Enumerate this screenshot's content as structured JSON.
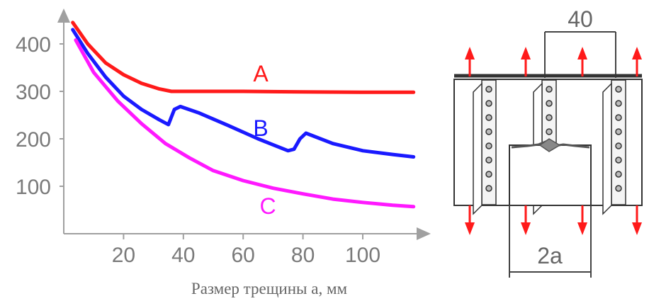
{
  "chart_data": {
    "type": "line",
    "xlabel": "Размер трещины  а, мм",
    "ylabel": "",
    "xlim": [
      0,
      120
    ],
    "ylim": [
      0,
      460
    ],
    "xticks": [
      20,
      40,
      60,
      80,
      100
    ],
    "yticks": [
      100,
      200,
      300,
      400
    ],
    "grid": false,
    "series": [
      {
        "name": "A",
        "color": "#ff1a1a",
        "x": [
          3,
          8,
          14,
          20,
          26,
          32,
          36,
          40,
          60,
          80,
          100,
          117
        ],
        "values": [
          445,
          400,
          360,
          335,
          317,
          305,
          300,
          300,
          300,
          299,
          298,
          298
        ]
      },
      {
        "name": "B",
        "color": "#1a1aff",
        "x": [
          3,
          8,
          14,
          20,
          26,
          32,
          35,
          37,
          39,
          45,
          55,
          65,
          75,
          77,
          79,
          81,
          90,
          100,
          110,
          117
        ],
        "values": [
          430,
          380,
          330,
          290,
          262,
          240,
          230,
          262,
          268,
          255,
          228,
          200,
          175,
          178,
          200,
          212,
          190,
          175,
          167,
          162
        ]
      },
      {
        "name": "C",
        "color": "#ff19ff",
        "x": [
          4,
          10,
          18,
          26,
          34,
          42,
          50,
          60,
          70,
          80,
          90,
          100,
          110,
          117
        ],
        "values": [
          408,
          340,
          280,
          232,
          190,
          160,
          133,
          112,
          96,
          84,
          73,
          66,
          60,
          57
        ]
      }
    ]
  },
  "diagram": {
    "top_dim_label": "40",
    "bottom_dim_label": "2a",
    "accent_color": "#ff1a1a"
  }
}
